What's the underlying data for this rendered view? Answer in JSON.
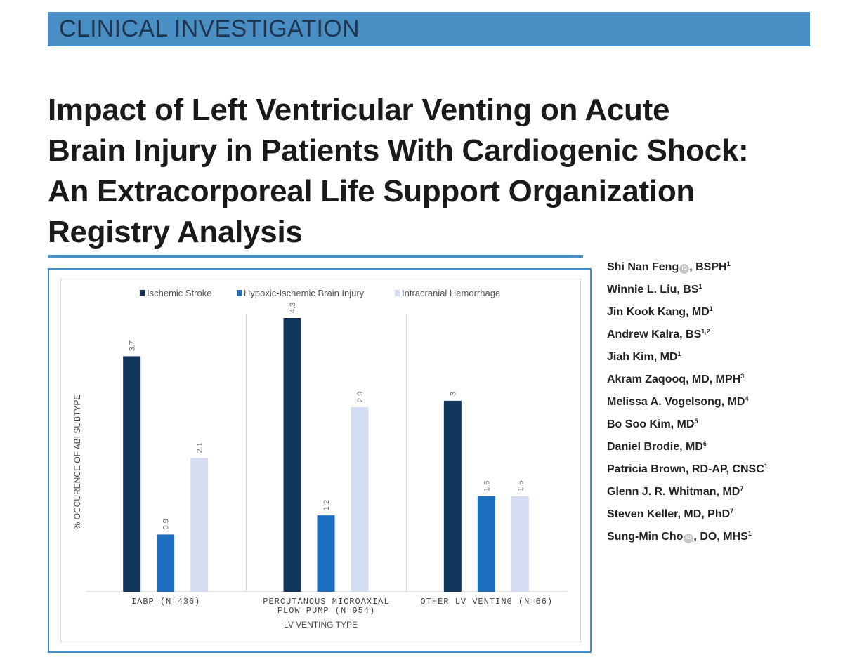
{
  "section": "CLINICAL INVESTIGATION",
  "title": "Impact of Left Ventricular Venting on Acute Brain Injury in Patients With Cardiogenic Shock: An Extracorporeal Life Support Organization Registry Analysis",
  "orcid_label": "iD",
  "authors": [
    {
      "name": "Shi Nan Feng",
      "orcid": true,
      "degree": ", BSPH",
      "aff": "1"
    },
    {
      "name": "Winnie L. Liu, BS",
      "orcid": false,
      "degree": "",
      "aff": "1"
    },
    {
      "name": "Jin Kook Kang, MD",
      "orcid": false,
      "degree": "",
      "aff": "1"
    },
    {
      "name": "Andrew Kalra, BS",
      "orcid": false,
      "degree": "",
      "aff": "1,2"
    },
    {
      "name": "Jiah Kim, MD",
      "orcid": false,
      "degree": "",
      "aff": "1"
    },
    {
      "name": "Akram Zaqooq, MD, MPH",
      "orcid": false,
      "degree": "",
      "aff": "3"
    },
    {
      "name": "Melissa A. Vogelsong, MD",
      "orcid": false,
      "degree": "",
      "aff": "4"
    },
    {
      "name": "Bo Soo Kim, MD",
      "orcid": false,
      "degree": "",
      "aff": "5"
    },
    {
      "name": "Daniel Brodie, MD",
      "orcid": false,
      "degree": "",
      "aff": "6"
    },
    {
      "name": "Patricia Brown, RD-AP, CNSC",
      "orcid": false,
      "degree": "",
      "aff": "1"
    },
    {
      "name": "Glenn J. R. Whitman, MD",
      "orcid": false,
      "degree": "",
      "aff": "7"
    },
    {
      "name": "Steven Keller, MD, PhD",
      "orcid": false,
      "degree": "",
      "aff": "7"
    },
    {
      "name": "Sung-Min Cho",
      "orcid": true,
      "degree": ", DO, MHS",
      "aff": "1"
    }
  ],
  "chart_data": {
    "type": "bar",
    "title": "",
    "xlabel": "LV VENTING TYPE",
    "ylabel": "% OCCURENCE OF ABI SUBTYPE",
    "categories": [
      [
        "IABP (N=436)"
      ],
      [
        "PERCUTANOUS MICROAXIAL",
        "FLOW PUMP (N=954)"
      ],
      [
        "OTHER LV VENTING (N=66)"
      ]
    ],
    "series": [
      {
        "name": "Ischemic Stroke",
        "color": "#12355b",
        "values": [
          3.7,
          4.3,
          3
        ]
      },
      {
        "name": "Hypoxic-Ischemic Brain Injury",
        "color": "#1b6fbe",
        "values": [
          0.9,
          1.2,
          1.5
        ]
      },
      {
        "name": "Intracranial Hemorrhage",
        "color": "#d3dcf0",
        "values": [
          2.1,
          2.9,
          1.5
        ]
      }
    ],
    "ylim": [
      0,
      5
    ],
    "grid": false,
    "legend": "top"
  }
}
